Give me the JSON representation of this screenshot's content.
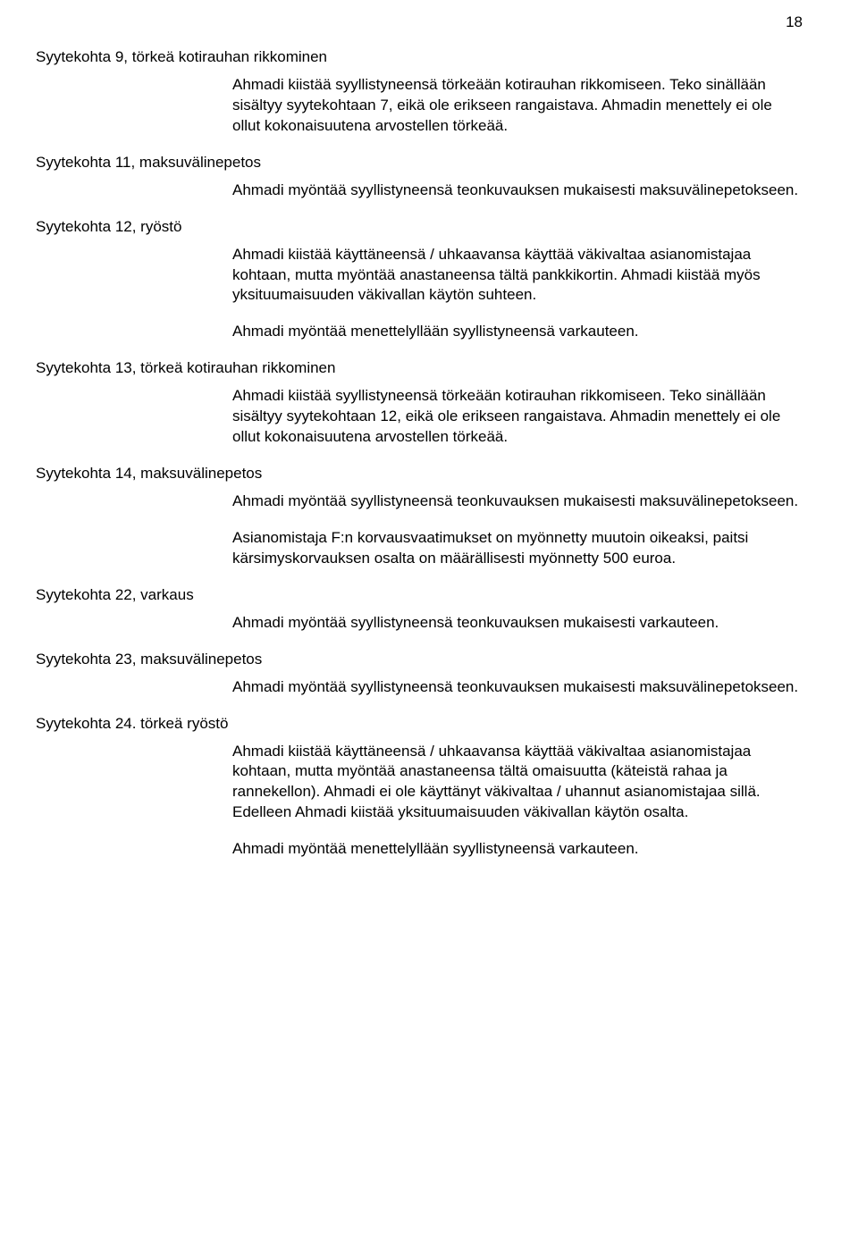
{
  "page_number": "18",
  "sections": [
    {
      "heading": "Syytekohta 9, törkeä kotirauhan rikkominen",
      "paragraphs": [
        "Ahmadi kiistää syyllistyneensä törkeään kotirauhan rikkomiseen. Teko sinällään sisältyy syytekohtaan 7, eikä ole erikseen rangaistava. Ahmadin menettely ei ole ollut kokonaisuutena arvostellen törkeää."
      ]
    },
    {
      "heading": "Syytekohta 11, maksuvälinepetos",
      "paragraphs": [
        "Ahmadi myöntää syyllistyneensä teonkuvauksen mukaisesti maksuvälinepetokseen."
      ]
    },
    {
      "heading": "Syytekohta 12, ryöstö",
      "paragraphs": [
        "Ahmadi kiistää käyttäneensä / uhkaavansa käyttää väkivaltaa asianomistajaa kohtaan, mutta myöntää anastaneensa tältä pankkikortin. Ahmadi kiistää myös yksituumaisuuden väkivallan käytön suhteen.",
        "Ahmadi myöntää menettelyllään syyllistyneensä varkauteen."
      ]
    },
    {
      "heading": "Syytekohta 13, törkeä kotirauhan rikkominen",
      "paragraphs": [
        "Ahmadi kiistää syyllistyneensä törkeään kotirauhan rikkomiseen. Teko sinällään sisältyy syytekohtaan 12, eikä ole erikseen rangaistava. Ahmadin menettely ei ole ollut kokonaisuutena arvostellen törkeää."
      ]
    },
    {
      "heading": "Syytekohta 14, maksuvälinepetos",
      "paragraphs": [
        "Ahmadi myöntää syyllistyneensä teonkuvauksen mukaisesti maksuvälinepetokseen.",
        "Asianomistaja F:n korvausvaatimukset on myönnetty muutoin oikeaksi, paitsi kärsimyskorvauksen osalta on määrällisesti myönnetty 500 euroa."
      ]
    },
    {
      "heading": "Syytekohta 22, varkaus",
      "paragraphs": [
        "Ahmadi myöntää syyllistyneensä teonkuvauksen mukaisesti varkauteen."
      ]
    },
    {
      "heading": "Syytekohta 23, maksuvälinepetos",
      "paragraphs": [
        "Ahmadi myöntää syyllistyneensä teonkuvauksen mukaisesti maksuvälinepetokseen."
      ]
    },
    {
      "heading": "Syytekohta 24. törkeä ryöstö",
      "paragraphs": [
        "Ahmadi kiistää käyttäneensä / uhkaavansa käyttää väkivaltaa asianomistajaa kohtaan, mutta myöntää anastaneensa tältä omaisuutta (käteistä rahaa ja rannekellon). Ahmadi ei ole käyttänyt väkivaltaa / uhannut asianomistajaa sillä. Edelleen Ahmadi kiistää yksituumaisuuden väkivallan käytön osalta.",
        "Ahmadi myöntää menettelyllään syyllistyneensä varkauteen."
      ]
    }
  ]
}
